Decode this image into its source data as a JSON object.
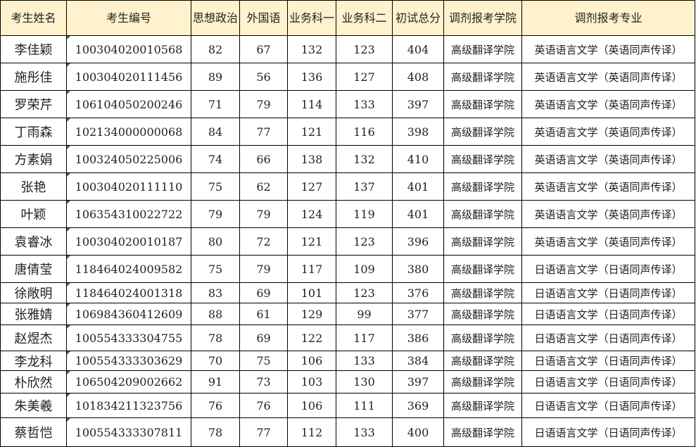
{
  "header_color": "#FFF2CC",
  "columns": [
    "考生姓名",
    "考生编号",
    "思想政治",
    "外国语",
    "业务科一",
    "业务科二",
    "初试总分",
    "调剂报考学院",
    "调剂报考专业"
  ],
  "rows": [
    [
      "李佳颖",
      "100304020010568",
      "82",
      "67",
      "132",
      "123",
      "404",
      "高级翻译学院",
      "英语语言文学（英语同声传译）"
    ],
    [
      "施彤佳",
      "100304020111456",
      "89",
      "56",
      "136",
      "127",
      "408",
      "高级翻译学院",
      "英语语言文学（英语同声传译）"
    ],
    [
      "罗荣芹",
      "106104050200246",
      "71",
      "79",
      "114",
      "133",
      "397",
      "高级翻译学院",
      "英语语言文学（英语同声传译）"
    ],
    [
      "丁雨森",
      "102134000000068",
      "84",
      "77",
      "121",
      "116",
      "398",
      "高级翻译学院",
      "英语语言文学（英语同声传译）"
    ],
    [
      "方素娟",
      "100324050225006",
      "74",
      "66",
      "138",
      "132",
      "410",
      "高级翻译学院",
      "英语语言文学（英语同声传译）"
    ],
    [
      "张艳",
      "100304020111110",
      "75",
      "62",
      "127",
      "137",
      "401",
      "高级翻译学院",
      "英语语言文学（英语同声传译）"
    ],
    [
      "叶颖",
      "106354310022722",
      "79",
      "79",
      "124",
      "119",
      "401",
      "高级翻译学院",
      "英语语言文学（英语同声传译）"
    ],
    [
      "袁睿冰",
      "100304020010187",
      "80",
      "72",
      "121",
      "123",
      "396",
      "高级翻译学院",
      "英语语言文学（英语同声传译）"
    ],
    [
      "唐倩莹",
      "118464024009582",
      "75",
      "79",
      "117",
      "109",
      "380",
      "高级翻译学院",
      "日语语言文学（日语同声传译）"
    ],
    [
      "徐敞明",
      "118464024001318",
      "83",
      "69",
      "101",
      "123",
      "376",
      "高级翻译学院",
      "日语语言文学（日语同声传译）"
    ],
    [
      "张雅婧",
      "106984360412609",
      "88",
      "61",
      "129",
      "99",
      "377",
      "高级翻译学院",
      "日语语言文学（日语同声传译）"
    ],
    [
      "赵煜杰",
      "100554333304755",
      "78",
      "69",
      "122",
      "117",
      "386",
      "高级翻译学院",
      "日语语言文学（日语同声传译）"
    ],
    [
      "李龙科",
      "100554333303629",
      "70",
      "75",
      "106",
      "133",
      "384",
      "高级翻译学院",
      "日语语言文学（日语同声传译）"
    ],
    [
      "朴欣然",
      "106504209002662",
      "91",
      "73",
      "103",
      "130",
      "397",
      "高级翻译学院",
      "日语语言文学（日语同声传译）"
    ],
    [
      "朱美羲",
      "101834211323756",
      "76",
      "76",
      "106",
      "111",
      "369",
      "高级翻译学院",
      "日语语言文学（日语同声传译）"
    ],
    [
      "蔡哲恺",
      "100554333307811",
      "78",
      "77",
      "112",
      "133",
      "400",
      "高级翻译学院",
      "日语语言文学（日语同声传译）"
    ]
  ]
}
